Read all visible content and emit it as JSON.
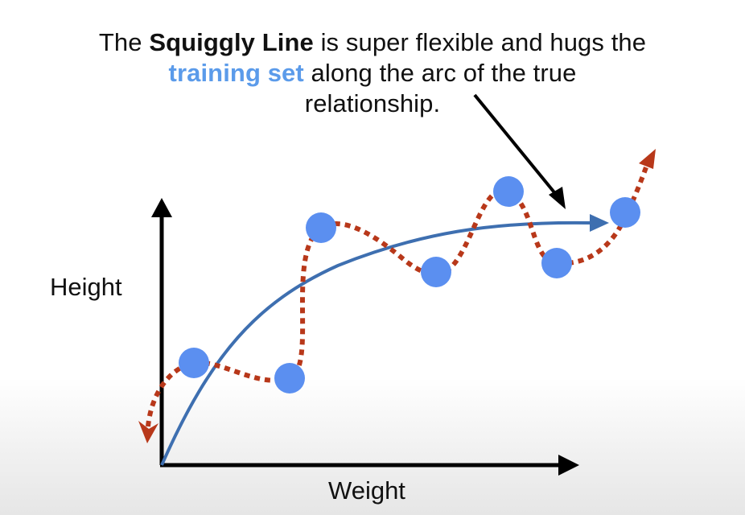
{
  "caption": {
    "part1": "The ",
    "bold1": "Squiggly Line",
    "part2": " is super flexible and hugs the",
    "blue1": "training set",
    "part3": " along the arc of the true",
    "part4": "relationship."
  },
  "axes": {
    "y_label": "Height",
    "x_label": "Weight"
  },
  "colors": {
    "points": "#5b8ff0",
    "true_curve": "#3e6fb0",
    "squiggly_line": "#b8381a",
    "axis": "#000000",
    "highlight_text": "#5b9bea"
  }
}
